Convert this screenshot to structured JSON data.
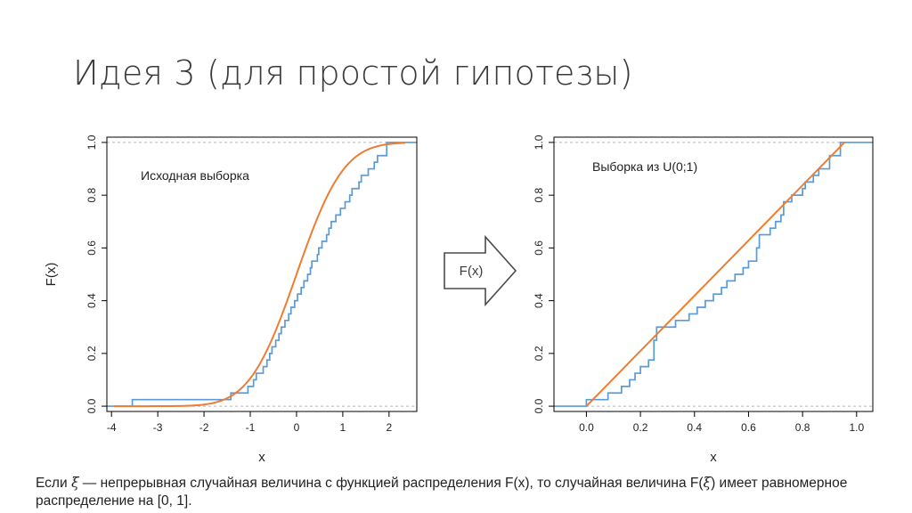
{
  "slide": {
    "title": "Идея 3 (для простой гипотезы)"
  },
  "transform": {
    "label": "F(x)"
  },
  "caption": {
    "p1": "Если ",
    "xi": "ξ",
    "p2": " — непрерывная случайная величина с функцией распределения F(x), то случайная величина F(",
    "xi2": "ξ",
    "p3": ") имеет равномерное распределение на [0, 1]."
  },
  "colors": {
    "ecdf": "#5b9bd5",
    "cdf": "#ed7d31",
    "arrow_fill": "#ffffff",
    "arrow_stroke": "#4a4a4a",
    "frame": "#000000",
    "ref_line": "#b5b5b5"
  },
  "chart_data": [
    {
      "type": "line",
      "annotation": "Исходная выборка",
      "xlabel": "x",
      "ylabel": "F(x)",
      "xlim": [
        -4.1,
        2.6
      ],
      "ylim": [
        -0.02,
        1.02
      ],
      "xticks": [
        -4,
        -3,
        -2,
        -1,
        0,
        1,
        2
      ],
      "xtick_labels": [
        "-4",
        "-3",
        "-2",
        "-1",
        "0",
        "1",
        "2"
      ],
      "yticks": [
        0.0,
        0.2,
        0.4,
        0.6,
        0.8,
        1.0
      ],
      "ytick_labels": [
        "0.0",
        "0.2",
        "0.4",
        "0.6",
        "0.8",
        "1.0"
      ],
      "reference_lines": [
        0,
        1
      ],
      "series": [
        {
          "kind": "ecdf",
          "color": "#5b9bd5",
          "x": [
            -3.55,
            -1.42,
            -1.05,
            -0.93,
            -0.87,
            -0.72,
            -0.64,
            -0.58,
            -0.53,
            -0.45,
            -0.38,
            -0.33,
            -0.25,
            -0.17,
            -0.12,
            -0.04,
            0.02,
            0.1,
            0.16,
            0.24,
            0.3,
            0.33,
            0.45,
            0.48,
            0.55,
            0.65,
            0.7,
            0.75,
            0.85,
            0.95,
            1.05,
            1.15,
            1.2,
            1.35,
            1.4,
            1.55,
            1.68,
            1.75,
            1.95
          ],
          "y": [
            0.025,
            0.05,
            0.075,
            0.1,
            0.125,
            0.15,
            0.175,
            0.2,
            0.225,
            0.25,
            0.275,
            0.3,
            0.325,
            0.35,
            0.375,
            0.4,
            0.425,
            0.45,
            0.475,
            0.5,
            0.525,
            0.55,
            0.575,
            0.6,
            0.625,
            0.65,
            0.675,
            0.7,
            0.725,
            0.75,
            0.775,
            0.8,
            0.825,
            0.85,
            0.875,
            0.9,
            0.925,
            0.95,
            1.0
          ]
        },
        {
          "kind": "cdf",
          "name_hint": "normal CDF",
          "color": "#ed7d31",
          "x_range": [
            -3.95,
            2.35
          ],
          "mean": 0,
          "sd": 0.8
        }
      ]
    },
    {
      "type": "line",
      "annotation": "Выборка из U(0;1)",
      "xlabel": "x",
      "ylabel": "",
      "xlim": [
        -0.12,
        1.06
      ],
      "ylim": [
        -0.02,
        1.02
      ],
      "xticks": [
        0.0,
        0.2,
        0.4,
        0.6,
        0.8,
        1.0
      ],
      "xtick_labels": [
        "0.0",
        "0.2",
        "0.4",
        "0.6",
        "0.8",
        "1.0"
      ],
      "yticks": [
        0.0,
        0.2,
        0.4,
        0.6,
        0.8,
        1.0
      ],
      "ytick_labels": [
        "0.0",
        "0.2",
        "0.4",
        "0.6",
        "0.8",
        "1.0"
      ],
      "reference_lines": [
        0,
        1
      ],
      "series": [
        {
          "kind": "ecdf",
          "color": "#5b9bd5",
          "x": [
            0.0,
            0.08,
            0.13,
            0.16,
            0.18,
            0.2,
            0.23,
            0.25,
            0.26,
            0.33,
            0.38,
            0.41,
            0.44,
            0.47,
            0.5,
            0.52,
            0.55,
            0.58,
            0.6,
            0.63,
            0.64,
            0.68,
            0.7,
            0.72,
            0.73,
            0.76,
            0.8,
            0.81,
            0.84,
            0.86,
            0.9,
            0.94
          ],
          "y": [
            0.025,
            0.05,
            0.075,
            0.1,
            0.125,
            0.15,
            0.175,
            0.25,
            0.3,
            0.325,
            0.35,
            0.375,
            0.4,
            0.425,
            0.45,
            0.475,
            0.5,
            0.525,
            0.55,
            0.6,
            0.65,
            0.675,
            0.7,
            0.725,
            0.775,
            0.8,
            0.825,
            0.85,
            0.875,
            0.9,
            0.95,
            1.0
          ]
        },
        {
          "kind": "cdf",
          "name_hint": "uniform CDF",
          "color": "#ed7d31",
          "x": [
            0.0,
            0.955
          ],
          "y": [
            0.0,
            1.0
          ]
        }
      ]
    }
  ]
}
